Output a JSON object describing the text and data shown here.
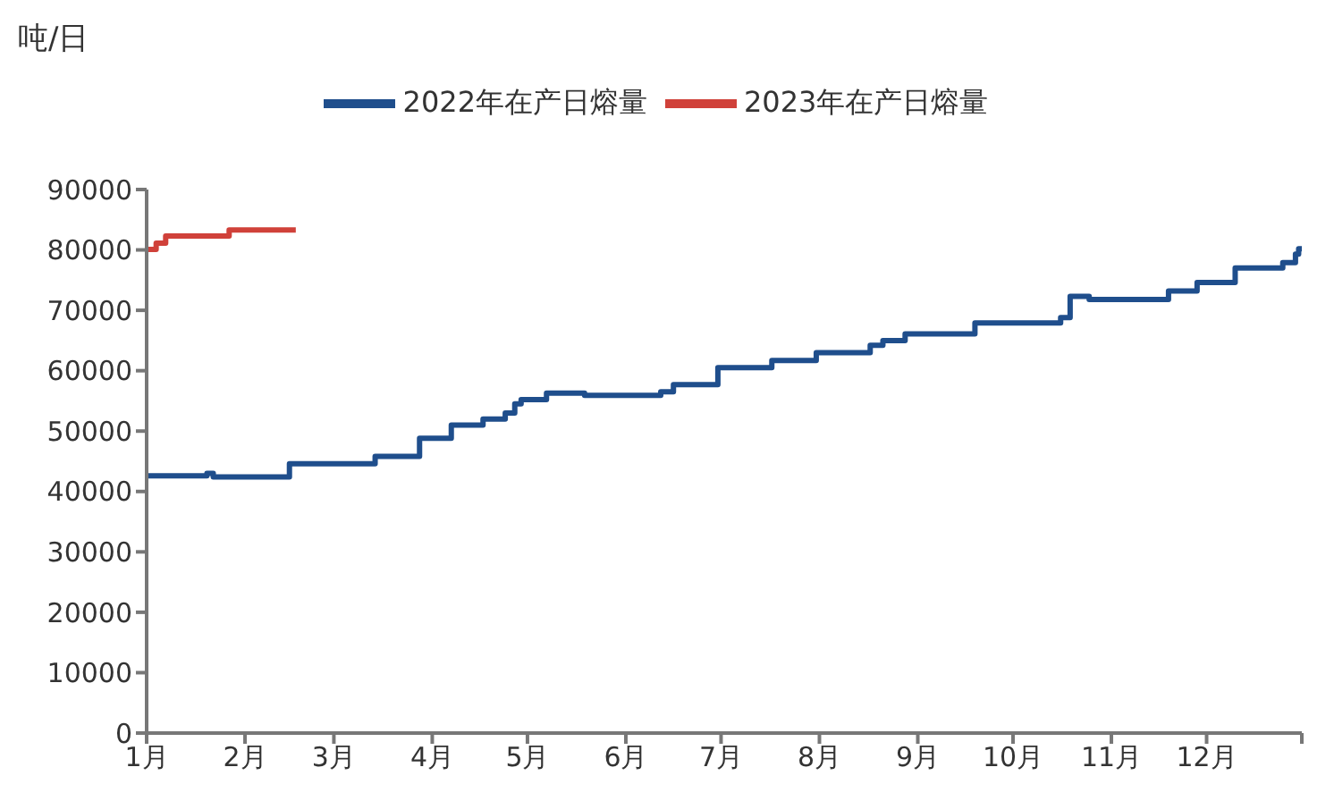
{
  "chart_data": {
    "type": "step",
    "ylabel": "吨/日",
    "legend": "top",
    "marker": "none",
    "line_style": "solid",
    "xlim": [
      "--01-01",
      "--12-31"
    ],
    "xticks": [
      {
        "value": "--01-01",
        "label": "1月"
      },
      {
        "value": "--02-01",
        "label": "2月"
      },
      {
        "value": "--03-01",
        "label": "3月"
      },
      {
        "value": "--04-01",
        "label": "4月"
      },
      {
        "value": "--05-01",
        "label": "5月"
      },
      {
        "value": "--06-01",
        "label": "6月"
      },
      {
        "value": "--07-01",
        "label": "7月"
      },
      {
        "value": "--08-01",
        "label": "8月"
      },
      {
        "value": "--09-01",
        "label": "9月"
      },
      {
        "value": "--10-01",
        "label": "10月"
      },
      {
        "value": "--11-01",
        "label": "11月"
      },
      {
        "value": "--12-01",
        "label": "12月"
      },
      {
        "value": "--12-31",
        "label": null
      }
    ],
    "ylim": [
      0,
      90000
    ],
    "yticks": [
      0,
      10000,
      20000,
      30000,
      40000,
      50000,
      60000,
      70000,
      80000,
      90000
    ],
    "series": [
      {
        "name": "2022年在产日熔量",
        "color": "#1f4e8c",
        "x": [
          "--01-01",
          "--01-20",
          "--01-22",
          "--02-15",
          "--03-14",
          "--03-28",
          "--04-07",
          "--04-17",
          "--04-24",
          "--04-27",
          "--04-29",
          "--05-07",
          "--05-19",
          "--06-12",
          "--06-16",
          "--06-30",
          "--07-17",
          "--07-31",
          "--08-17",
          "--08-21",
          "--08-28",
          "--09-19",
          "--10-16",
          "--10-19",
          "--10-25",
          "--11-19",
          "--11-28",
          "--12-10",
          "--12-25",
          "--12-29",
          "--12-30",
          "--12-31"
        ],
        "values": [
          42600,
          43000,
          42400,
          44600,
          45800,
          48800,
          51000,
          52000,
          53000,
          54500,
          55200,
          56300,
          55900,
          56500,
          57700,
          60500,
          61700,
          63000,
          64200,
          65000,
          66100,
          67900,
          68800,
          72300,
          71800,
          73200,
          74600,
          77000,
          77900,
          79300,
          80200,
          80200
        ]
      },
      {
        "name": "2023年在产日熔量",
        "color": "#d0413a",
        "x": [
          "--01-01",
          "--01-04",
          "--01-07",
          "--01-27",
          "--02-17"
        ],
        "values": [
          80100,
          81100,
          82300,
          83300,
          83300
        ]
      }
    ]
  }
}
